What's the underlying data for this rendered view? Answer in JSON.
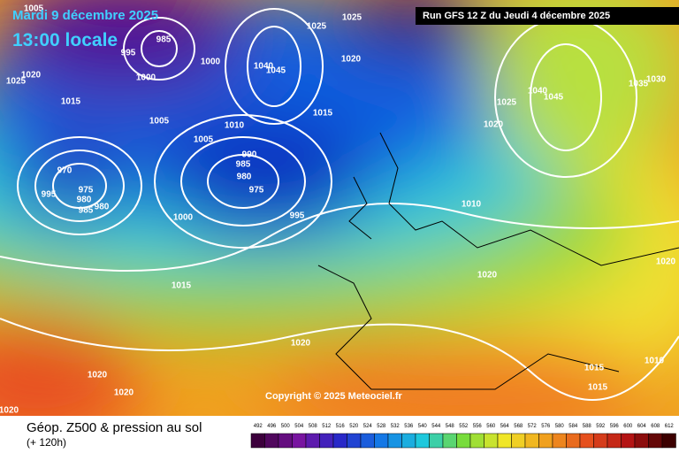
{
  "header": {
    "date": "Mardi 9 décembre 2025",
    "time": "13:00 locale",
    "run": "Run GFS 12 Z du Jeudi 4 décembre 2025"
  },
  "copyright": "Copyright © 2025 Meteociel.fr",
  "footer": {
    "title": "Géop. Z500 & pression au sol",
    "lead": "(+ 120h)"
  },
  "scale": {
    "ticks": [
      492,
      496,
      500,
      504,
      508,
      512,
      516,
      520,
      524,
      528,
      532,
      536,
      540,
      544,
      548,
      552,
      556,
      560,
      564,
      568,
      572,
      576,
      580,
      584,
      588,
      592,
      596,
      600,
      604,
      608,
      612
    ]
  },
  "isobars": [
    "1005",
    "985",
    "995",
    "1000",
    "1020",
    "1025",
    "1015",
    "1005",
    "1000",
    "1025",
    "1025",
    "1020",
    "1040",
    "1045",
    "1010",
    "1005",
    "1015",
    "990",
    "985",
    "980",
    "975",
    "995",
    "1000",
    "970",
    "995",
    "975",
    "980",
    "985",
    "980",
    "1015",
    "1020",
    "1020",
    "1020",
    "1020",
    "1010",
    "1020",
    "1025",
    "1020",
    "1040",
    "1045",
    "1035",
    "1030",
    "1020",
    "1010",
    "1015",
    "1015"
  ]
}
